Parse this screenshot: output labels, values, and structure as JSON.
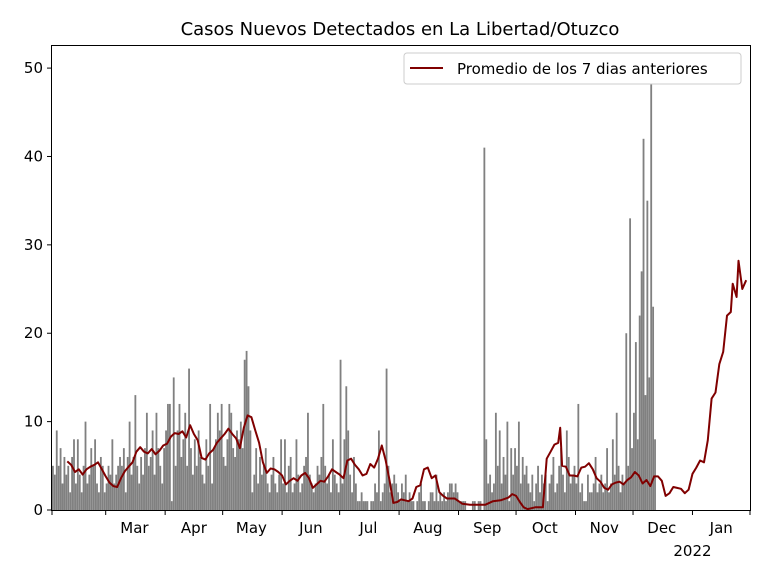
{
  "chart_data": {
    "type": "bar",
    "title": "Casos Nuevos Detectados en La Libertad/Otuzco",
    "xlabel": "",
    "ylabel": "",
    "ylim": [
      0,
      52.5
    ],
    "yticks": [
      0,
      10,
      20,
      30,
      40,
      50
    ],
    "x_start": "2021-02-01",
    "x_end": "2022-01-31",
    "xticks": [
      {
        "date": "2021-03-01",
        "label": "Mar"
      },
      {
        "date": "2021-04-01",
        "label": "Apr"
      },
      {
        "date": "2021-05-01",
        "label": "May"
      },
      {
        "date": "2021-06-01",
        "label": "Jun"
      },
      {
        "date": "2021-07-01",
        "label": "Jul"
      },
      {
        "date": "2021-08-01",
        "label": "Aug"
      },
      {
        "date": "2021-09-01",
        "label": "Sep"
      },
      {
        "date": "2021-10-01",
        "label": "Oct"
      },
      {
        "date": "2021-11-01",
        "label": "Nov"
      },
      {
        "date": "2021-12-01",
        "label": "Dec"
      },
      {
        "date": "2022-01-01",
        "label": "Jan",
        "sublabel": "2022"
      }
    ],
    "bar_color": "#808080",
    "line_color": "#800000",
    "legend_position": "top-right",
    "series": [
      {
        "name": "Promedio de los 7 dias anteriores",
        "type": "line"
      }
    ],
    "daily_cases": [
      5,
      4,
      9,
      5,
      7,
      3,
      6,
      4,
      5,
      2,
      6,
      8,
      3,
      8,
      4,
      2,
      5,
      10,
      3,
      4,
      7,
      5,
      8,
      3,
      2,
      6,
      5,
      2,
      3,
      5,
      4,
      8,
      3,
      4,
      5,
      6,
      5,
      7,
      2,
      6,
      10,
      4,
      6,
      13,
      5,
      3,
      6,
      4,
      7,
      11,
      5,
      6,
      9,
      4,
      11,
      7,
      5,
      3,
      7,
      9,
      12,
      12,
      1,
      15,
      5,
      9,
      12,
      6,
      8,
      11,
      5,
      16,
      7,
      4,
      8,
      5,
      9,
      6,
      4,
      3,
      8,
      5,
      12,
      3,
      7,
      8,
      11,
      9,
      12,
      6,
      5,
      8,
      12,
      11,
      7,
      6,
      9,
      8,
      10,
      7,
      17,
      18,
      14,
      9,
      2,
      4,
      7,
      3,
      6,
      4,
      5,
      7,
      3,
      2,
      4,
      6,
      3,
      2,
      4,
      8,
      3,
      8,
      2,
      5,
      6,
      2,
      3,
      8,
      4,
      2,
      3,
      5,
      6,
      11,
      4,
      3,
      2,
      3,
      5,
      4,
      6,
      12,
      5,
      3,
      4,
      2,
      8,
      4,
      3,
      2,
      17,
      3,
      8,
      14,
      9,
      4,
      2,
      6,
      3,
      1,
      1,
      2,
      1,
      1,
      1,
      0,
      1,
      1,
      3,
      2,
      9,
      1,
      2,
      3,
      16,
      5,
      2,
      3,
      4,
      3,
      2,
      1,
      3,
      2,
      4,
      1,
      2,
      1,
      1,
      0,
      1,
      2,
      3,
      1,
      1,
      0,
      1,
      2,
      2,
      1,
      4,
      1,
      2,
      1,
      2,
      1,
      2,
      3,
      3,
      2,
      3,
      2,
      1,
      1,
      1,
      1,
      0,
      0,
      0,
      1,
      1,
      0,
      1,
      1,
      0,
      41,
      8,
      3,
      4,
      2,
      3,
      11,
      5,
      9,
      3,
      6,
      4,
      10,
      1,
      7,
      4,
      7,
      5,
      10,
      3,
      6,
      4,
      5,
      3,
      2,
      4,
      1,
      3,
      5,
      2,
      4,
      3,
      4,
      1,
      3,
      4,
      6,
      2,
      3,
      5,
      7,
      4,
      2,
      9,
      6,
      3,
      4,
      5,
      3,
      12,
      2,
      3,
      1,
      1,
      4,
      2,
      2,
      3,
      6,
      2,
      3,
      4,
      2,
      3,
      7,
      2,
      3,
      8,
      4,
      11,
      5,
      2,
      4,
      3,
      20,
      5,
      33,
      7,
      11,
      19,
      8,
      22,
      27,
      42,
      13,
      35,
      15,
      50,
      23,
      8
    ],
    "avg_points": [
      [
        8,
        5.5
      ],
      [
        10,
        5.1
      ],
      [
        12,
        4.3
      ],
      [
        14,
        4.6
      ],
      [
        16,
        4.0
      ],
      [
        18,
        4.6
      ],
      [
        20,
        4.9
      ],
      [
        22,
        5.1
      ],
      [
        24,
        5.4
      ],
      [
        26,
        4.6
      ],
      [
        28,
        3.8
      ],
      [
        30,
        3.1
      ],
      [
        32,
        2.7
      ],
      [
        34,
        2.6
      ],
      [
        36,
        3.6
      ],
      [
        38,
        4.4
      ],
      [
        40,
        4.9
      ],
      [
        42,
        5.4
      ],
      [
        44,
        6.6
      ],
      [
        46,
        7.1
      ],
      [
        48,
        6.6
      ],
      [
        50,
        6.4
      ],
      [
        52,
        6.9
      ],
      [
        54,
        6.3
      ],
      [
        56,
        6.7
      ],
      [
        58,
        7.3
      ],
      [
        60,
        7.5
      ],
      [
        62,
        8.3
      ],
      [
        64,
        8.7
      ],
      [
        66,
        8.6
      ],
      [
        68,
        8.9
      ],
      [
        70,
        8.2
      ],
      [
        72,
        9.6
      ],
      [
        74,
        8.6
      ],
      [
        76,
        7.9
      ],
      [
        78,
        5.9
      ],
      [
        80,
        5.7
      ],
      [
        82,
        6.4
      ],
      [
        84,
        6.8
      ],
      [
        86,
        7.6
      ],
      [
        88,
        8.1
      ],
      [
        90,
        8.6
      ],
      [
        92,
        9.2
      ],
      [
        94,
        8.6
      ],
      [
        96,
        8.1
      ],
      [
        98,
        7.0
      ],
      [
        100,
        9.3
      ],
      [
        102,
        10.7
      ],
      [
        104,
        10.5
      ],
      [
        106,
        9.0
      ],
      [
        108,
        7.6
      ],
      [
        110,
        5.4
      ],
      [
        112,
        4.2
      ],
      [
        114,
        4.7
      ],
      [
        116,
        4.6
      ],
      [
        118,
        4.3
      ],
      [
        120,
        3.9
      ],
      [
        122,
        2.9
      ],
      [
        124,
        3.3
      ],
      [
        126,
        3.6
      ],
      [
        128,
        3.3
      ],
      [
        130,
        3.9
      ],
      [
        132,
        4.2
      ],
      [
        134,
        3.6
      ],
      [
        136,
        2.5
      ],
      [
        138,
        2.9
      ],
      [
        140,
        3.3
      ],
      [
        142,
        3.2
      ],
      [
        144,
        3.8
      ],
      [
        146,
        4.6
      ],
      [
        148,
        4.3
      ],
      [
        150,
        4.0
      ],
      [
        152,
        3.6
      ],
      [
        154,
        5.6
      ],
      [
        156,
        5.8
      ],
      [
        158,
        5.1
      ],
      [
        160,
        4.6
      ],
      [
        162,
        3.9
      ],
      [
        164,
        4.1
      ],
      [
        166,
        5.2
      ],
      [
        168,
        4.8
      ],
      [
        170,
        5.8
      ],
      [
        172,
        7.3
      ],
      [
        174,
        5.6
      ],
      [
        176,
        3.4
      ],
      [
        178,
        0.8
      ],
      [
        180,
        0.9
      ],
      [
        182,
        1.2
      ],
      [
        184,
        1.1
      ],
      [
        186,
        1.0
      ],
      [
        188,
        1.3
      ],
      [
        190,
        2.6
      ],
      [
        192,
        2.8
      ],
      [
        194,
        4.6
      ],
      [
        196,
        4.8
      ],
      [
        198,
        3.6
      ],
      [
        200,
        3.9
      ],
      [
        202,
        2.0
      ],
      [
        204,
        1.6
      ],
      [
        206,
        1.3
      ],
      [
        210,
        1.3
      ],
      [
        214,
        0.7
      ],
      [
        218,
        0.6
      ],
      [
        222,
        0.6
      ],
      [
        226,
        0.6
      ],
      [
        230,
        1.0
      ],
      [
        234,
        1.1
      ],
      [
        238,
        1.4
      ],
      [
        240,
        1.8
      ],
      [
        242,
        1.6
      ],
      [
        244,
        0.9
      ],
      [
        246,
        0.3
      ],
      [
        248,
        0.1
      ],
      [
        252,
        0.3
      ],
      [
        256,
        0.3
      ],
      [
        258,
        5.8
      ],
      [
        260,
        6.6
      ],
      [
        262,
        7.4
      ],
      [
        264,
        7.6
      ],
      [
        265,
        9.3
      ],
      [
        266,
        5.0
      ],
      [
        268,
        4.9
      ],
      [
        270,
        3.9
      ],
      [
        272,
        3.9
      ],
      [
        274,
        3.8
      ],
      [
        276,
        4.8
      ],
      [
        278,
        4.9
      ],
      [
        280,
        5.3
      ],
      [
        282,
        4.6
      ],
      [
        284,
        3.6
      ],
      [
        286,
        3.2
      ],
      [
        288,
        2.5
      ],
      [
        290,
        2.3
      ],
      [
        292,
        2.9
      ],
      [
        294,
        3.1
      ],
      [
        296,
        3.2
      ],
      [
        298,
        2.9
      ],
      [
        300,
        3.4
      ],
      [
        302,
        3.7
      ],
      [
        304,
        4.3
      ],
      [
        306,
        3.9
      ],
      [
        308,
        3.0
      ],
      [
        310,
        3.4
      ],
      [
        312,
        2.7
      ],
      [
        314,
        3.8
      ],
      [
        316,
        3.8
      ],
      [
        318,
        3.3
      ],
      [
        320,
        1.6
      ],
      [
        322,
        1.9
      ],
      [
        324,
        2.6
      ],
      [
        326,
        2.5
      ],
      [
        328,
        2.4
      ],
      [
        330,
        1.9
      ],
      [
        332,
        2.3
      ],
      [
        334,
        4.1
      ],
      [
        336,
        4.8
      ],
      [
        338,
        5.6
      ],
      [
        340,
        5.4
      ],
      [
        342,
        7.9
      ],
      [
        344,
        12.6
      ],
      [
        346,
        13.3
      ],
      [
        348,
        16.5
      ],
      [
        350,
        17.9
      ],
      [
        352,
        22.0
      ],
      [
        354,
        22.4
      ],
      [
        355,
        25.6
      ],
      [
        357,
        24.1
      ],
      [
        358,
        28.2
      ],
      [
        360,
        25.0
      ],
      [
        362,
        26.0
      ]
    ]
  }
}
